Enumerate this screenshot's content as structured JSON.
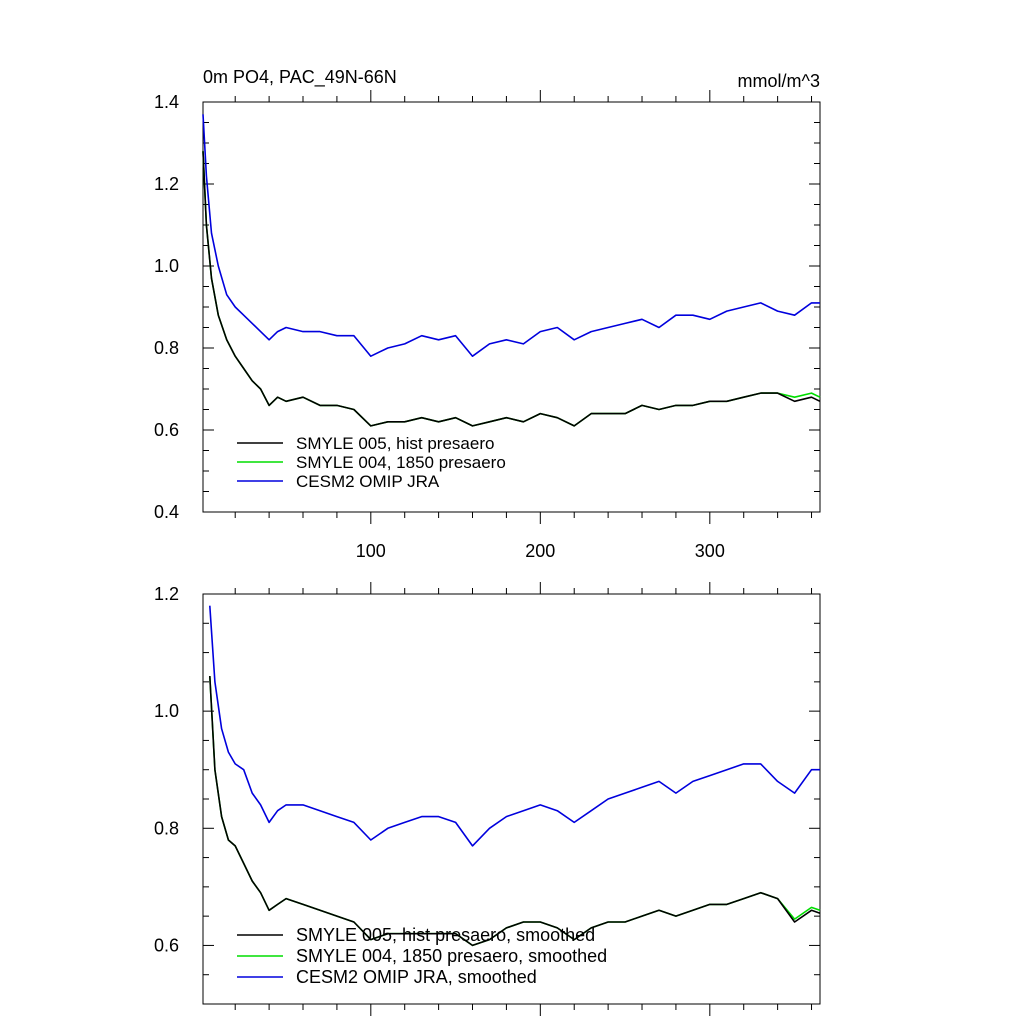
{
  "chart_data": [
    {
      "type": "line",
      "title": "0m PO4, PAC_49N-66N",
      "units": "mmol/m^3",
      "xlim": [
        1,
        365
      ],
      "ylim": [
        0.4,
        1.4
      ],
      "yticks": [
        "0.4",
        "0.6",
        "0.8",
        "1.0",
        "1.2",
        "1.4"
      ],
      "xticks": [
        100,
        200,
        300
      ],
      "xtick_labels": [
        "100",
        "200",
        "300"
      ],
      "legend": "bottom-left",
      "series": [
        {
          "name": "SMYLE 005, hist presaero",
          "color": "#000000",
          "x": [
            1,
            3,
            6,
            10,
            15,
            20,
            25,
            30,
            35,
            40,
            45,
            50,
            60,
            70,
            80,
            90,
            100,
            110,
            120,
            130,
            140,
            150,
            160,
            170,
            180,
            190,
            200,
            210,
            220,
            230,
            240,
            250,
            260,
            270,
            280,
            290,
            300,
            310,
            320,
            330,
            340,
            350,
            360,
            365
          ],
          "y": [
            1.28,
            1.1,
            0.97,
            0.88,
            0.82,
            0.78,
            0.75,
            0.72,
            0.7,
            0.66,
            0.68,
            0.67,
            0.68,
            0.66,
            0.66,
            0.65,
            0.61,
            0.62,
            0.62,
            0.63,
            0.62,
            0.63,
            0.61,
            0.62,
            0.63,
            0.62,
            0.64,
            0.63,
            0.61,
            0.64,
            0.64,
            0.64,
            0.66,
            0.65,
            0.66,
            0.66,
            0.67,
            0.67,
            0.68,
            0.69,
            0.69,
            0.67,
            0.68,
            0.67
          ]
        },
        {
          "name": "SMYLE 004, 1850 presaero",
          "color": "#00dd00",
          "x": [
            1,
            3,
            6,
            10,
            15,
            20,
            25,
            30,
            35,
            40,
            45,
            50,
            60,
            70,
            80,
            90,
            100,
            110,
            120,
            130,
            140,
            150,
            160,
            170,
            180,
            190,
            200,
            210,
            220,
            230,
            240,
            250,
            260,
            270,
            280,
            290,
            300,
            310,
            320,
            330,
            340,
            350,
            360,
            365
          ],
          "y": [
            1.28,
            1.1,
            0.97,
            0.88,
            0.82,
            0.78,
            0.75,
            0.72,
            0.7,
            0.66,
            0.68,
            0.67,
            0.68,
            0.66,
            0.66,
            0.65,
            0.61,
            0.62,
            0.62,
            0.63,
            0.62,
            0.63,
            0.61,
            0.62,
            0.63,
            0.62,
            0.64,
            0.63,
            0.61,
            0.64,
            0.64,
            0.64,
            0.66,
            0.65,
            0.66,
            0.66,
            0.67,
            0.67,
            0.68,
            0.69,
            0.69,
            0.68,
            0.69,
            0.68
          ]
        },
        {
          "name": "CESM2 OMIP JRA",
          "color": "#0000dd",
          "x": [
            1,
            3,
            6,
            10,
            15,
            20,
            25,
            30,
            35,
            40,
            45,
            50,
            60,
            70,
            80,
            90,
            100,
            110,
            120,
            130,
            140,
            150,
            160,
            170,
            180,
            190,
            200,
            210,
            220,
            230,
            240,
            250,
            260,
            270,
            280,
            290,
            300,
            310,
            320,
            330,
            340,
            350,
            360,
            365
          ],
          "y": [
            1.37,
            1.22,
            1.08,
            1.0,
            0.93,
            0.9,
            0.88,
            0.86,
            0.84,
            0.82,
            0.84,
            0.85,
            0.84,
            0.84,
            0.83,
            0.83,
            0.78,
            0.8,
            0.81,
            0.83,
            0.82,
            0.83,
            0.78,
            0.81,
            0.82,
            0.81,
            0.84,
            0.85,
            0.82,
            0.84,
            0.85,
            0.86,
            0.87,
            0.85,
            0.88,
            0.88,
            0.87,
            0.89,
            0.9,
            0.91,
            0.89,
            0.88,
            0.91,
            0.91
          ]
        }
      ]
    },
    {
      "type": "line",
      "xlim": [
        1,
        365
      ],
      "ylim": [
        0.5,
        1.2
      ],
      "yticks": [
        "0.6",
        "0.8",
        "1.0",
        "1.2"
      ],
      "xticks": [
        100,
        200,
        300
      ],
      "legend": "bottom-left",
      "series": [
        {
          "name": "SMYLE 005, hist presaero, smoothed",
          "color": "#000000",
          "x": [
            5,
            8,
            12,
            16,
            20,
            25,
            30,
            35,
            40,
            45,
            50,
            60,
            70,
            80,
            90,
            100,
            110,
            120,
            130,
            140,
            150,
            160,
            170,
            180,
            190,
            200,
            210,
            220,
            230,
            240,
            250,
            260,
            270,
            280,
            290,
            300,
            310,
            320,
            330,
            340,
            350,
            360,
            365
          ],
          "y": [
            1.06,
            0.9,
            0.82,
            0.78,
            0.77,
            0.74,
            0.71,
            0.69,
            0.66,
            0.67,
            0.68,
            0.67,
            0.66,
            0.65,
            0.64,
            0.61,
            0.62,
            0.62,
            0.62,
            0.62,
            0.62,
            0.6,
            0.61,
            0.63,
            0.64,
            0.64,
            0.63,
            0.61,
            0.63,
            0.64,
            0.64,
            0.65,
            0.66,
            0.65,
            0.66,
            0.67,
            0.67,
            0.68,
            0.69,
            0.68,
            0.64,
            0.66,
            0.655
          ]
        },
        {
          "name": "SMYLE 004, 1850 presaero, smoothed",
          "color": "#00dd00",
          "x": [
            5,
            8,
            12,
            16,
            20,
            25,
            30,
            35,
            40,
            45,
            50,
            60,
            70,
            80,
            90,
            100,
            110,
            120,
            130,
            140,
            150,
            160,
            170,
            180,
            190,
            200,
            210,
            220,
            230,
            240,
            250,
            260,
            270,
            280,
            290,
            300,
            310,
            320,
            330,
            340,
            350,
            360,
            365
          ],
          "y": [
            1.06,
            0.9,
            0.82,
            0.78,
            0.77,
            0.74,
            0.71,
            0.69,
            0.66,
            0.67,
            0.68,
            0.67,
            0.66,
            0.65,
            0.64,
            0.61,
            0.62,
            0.62,
            0.62,
            0.62,
            0.62,
            0.6,
            0.61,
            0.63,
            0.64,
            0.64,
            0.63,
            0.61,
            0.63,
            0.64,
            0.64,
            0.65,
            0.66,
            0.65,
            0.66,
            0.67,
            0.67,
            0.68,
            0.69,
            0.68,
            0.645,
            0.665,
            0.66
          ]
        },
        {
          "name": "CESM2 OMIP JRA, smoothed",
          "color": "#0000dd",
          "x": [
            5,
            8,
            12,
            16,
            20,
            25,
            30,
            35,
            40,
            45,
            50,
            60,
            70,
            80,
            90,
            100,
            110,
            120,
            130,
            140,
            150,
            160,
            170,
            180,
            190,
            200,
            210,
            220,
            230,
            240,
            250,
            260,
            270,
            280,
            290,
            300,
            310,
            320,
            330,
            340,
            350,
            360,
            365
          ],
          "y": [
            1.18,
            1.05,
            0.97,
            0.93,
            0.91,
            0.9,
            0.86,
            0.84,
            0.81,
            0.83,
            0.84,
            0.84,
            0.83,
            0.82,
            0.81,
            0.78,
            0.8,
            0.81,
            0.82,
            0.82,
            0.81,
            0.77,
            0.8,
            0.82,
            0.83,
            0.84,
            0.83,
            0.81,
            0.83,
            0.85,
            0.86,
            0.87,
            0.88,
            0.86,
            0.88,
            0.89,
            0.9,
            0.91,
            0.91,
            0.88,
            0.86,
            0.9,
            0.9
          ]
        }
      ]
    }
  ]
}
